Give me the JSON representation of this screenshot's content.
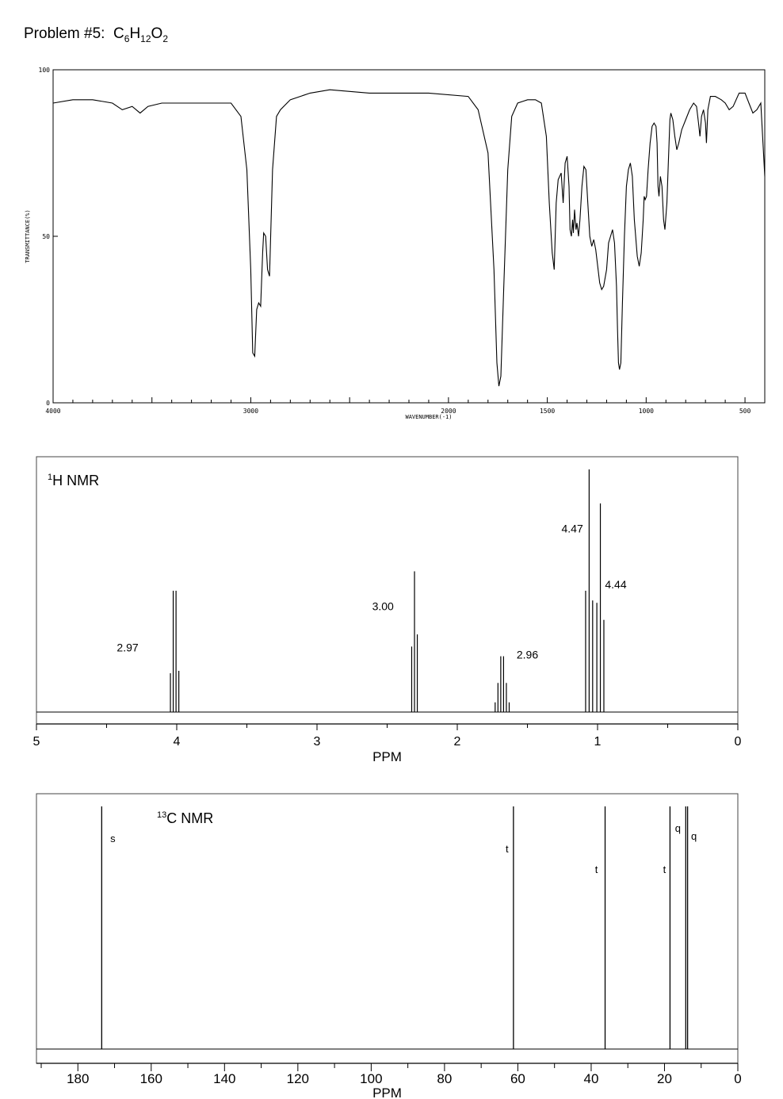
{
  "problem": {
    "label": "Problem #5:",
    "formula_parts": [
      {
        "text": "C",
        "sub": "6"
      },
      {
        "text": "H",
        "sub": "12"
      },
      {
        "text": "O",
        "sub": "2"
      }
    ]
  },
  "chart_data": [
    {
      "type": "line",
      "name": "ir",
      "xlabel": "WAVENUMBER(-1)",
      "ylabel": "TRANSMITTANCE(%)",
      "xlim": [
        4000,
        400
      ],
      "ylim": [
        0,
        100
      ],
      "x_ticks": [
        "4000",
        "3000",
        "2000",
        "1500",
        "1000",
        "500"
      ],
      "y_ticks": [
        "100",
        "50",
        "0"
      ],
      "grid": false,
      "points": [
        [
          4000,
          90
        ],
        [
          3900,
          91
        ],
        [
          3800,
          91
        ],
        [
          3700,
          90
        ],
        [
          3650,
          88
        ],
        [
          3600,
          89
        ],
        [
          3560,
          87
        ],
        [
          3520,
          89
        ],
        [
          3450,
          90
        ],
        [
          3300,
          90
        ],
        [
          3100,
          90
        ],
        [
          3050,
          86
        ],
        [
          3020,
          70
        ],
        [
          3000,
          40
        ],
        [
          2990,
          15
        ],
        [
          2980,
          14
        ],
        [
          2970,
          28
        ],
        [
          2960,
          30
        ],
        [
          2950,
          29
        ],
        [
          2940,
          45
        ],
        [
          2935,
          51
        ],
        [
          2925,
          50
        ],
        [
          2915,
          40
        ],
        [
          2905,
          38
        ],
        [
          2890,
          70
        ],
        [
          2870,
          86
        ],
        [
          2850,
          88
        ],
        [
          2800,
          91
        ],
        [
          2700,
          93
        ],
        [
          2600,
          94
        ],
        [
          2400,
          93
        ],
        [
          2200,
          93
        ],
        [
          2100,
          93
        ],
        [
          1900,
          92
        ],
        [
          1850,
          88
        ],
        [
          1800,
          75
        ],
        [
          1770,
          40
        ],
        [
          1755,
          12
        ],
        [
          1745,
          5
        ],
        [
          1735,
          8
        ],
        [
          1720,
          35
        ],
        [
          1700,
          70
        ],
        [
          1680,
          86
        ],
        [
          1650,
          90
        ],
        [
          1600,
          91
        ],
        [
          1560,
          91
        ],
        [
          1530,
          90
        ],
        [
          1505,
          80
        ],
        [
          1490,
          60
        ],
        [
          1475,
          45
        ],
        [
          1465,
          40
        ],
        [
          1455,
          60
        ],
        [
          1445,
          67
        ],
        [
          1430,
          69
        ],
        [
          1420,
          60
        ],
        [
          1410,
          72
        ],
        [
          1400,
          74
        ],
        [
          1390,
          65
        ],
        [
          1385,
          52
        ],
        [
          1378,
          50
        ],
        [
          1372,
          55
        ],
        [
          1368,
          51
        ],
        [
          1362,
          58
        ],
        [
          1355,
          52
        ],
        [
          1350,
          54
        ],
        [
          1342,
          50
        ],
        [
          1335,
          55
        ],
        [
          1325,
          65
        ],
        [
          1315,
          71
        ],
        [
          1305,
          70
        ],
        [
          1295,
          60
        ],
        [
          1285,
          50
        ],
        [
          1275,
          47
        ],
        [
          1265,
          49
        ],
        [
          1255,
          46
        ],
        [
          1245,
          41
        ],
        [
          1235,
          36
        ],
        [
          1225,
          34
        ],
        [
          1215,
          35
        ],
        [
          1200,
          40
        ],
        [
          1190,
          48
        ],
        [
          1180,
          50
        ],
        [
          1170,
          52
        ],
        [
          1160,
          48
        ],
        [
          1150,
          35
        ],
        [
          1145,
          22
        ],
        [
          1140,
          12
        ],
        [
          1135,
          10
        ],
        [
          1128,
          12
        ],
        [
          1120,
          30
        ],
        [
          1110,
          50
        ],
        [
          1100,
          65
        ],
        [
          1090,
          70
        ],
        [
          1080,
          72
        ],
        [
          1070,
          68
        ],
        [
          1060,
          55
        ],
        [
          1045,
          44
        ],
        [
          1035,
          41
        ],
        [
          1025,
          45
        ],
        [
          1015,
          55
        ],
        [
          1010,
          62
        ],
        [
          1005,
          61
        ],
        [
          998,
          62
        ],
        [
          990,
          70
        ],
        [
          980,
          78
        ],
        [
          970,
          83
        ],
        [
          960,
          84
        ],
        [
          950,
          83
        ],
        [
          945,
          78
        ],
        [
          940,
          65
        ],
        [
          935,
          62
        ],
        [
          928,
          68
        ],
        [
          920,
          65
        ],
        [
          912,
          55
        ],
        [
          905,
          52
        ],
        [
          895,
          60
        ],
        [
          888,
          72
        ],
        [
          880,
          85
        ],
        [
          875,
          87
        ],
        [
          865,
          85
        ],
        [
          855,
          80
        ],
        [
          845,
          76
        ],
        [
          835,
          78
        ],
        [
          820,
          82
        ],
        [
          800,
          85
        ],
        [
          780,
          88
        ],
        [
          760,
          90
        ],
        [
          745,
          89
        ],
        [
          735,
          84
        ],
        [
          728,
          80
        ],
        [
          720,
          86
        ],
        [
          710,
          88
        ],
        [
          700,
          84
        ],
        [
          695,
          78
        ],
        [
          688,
          88
        ],
        [
          675,
          92
        ],
        [
          650,
          92
        ],
        [
          620,
          91
        ],
        [
          600,
          90
        ],
        [
          580,
          88
        ],
        [
          560,
          89
        ],
        [
          530,
          93
        ],
        [
          500,
          93
        ],
        [
          480,
          90
        ],
        [
          460,
          87
        ],
        [
          440,
          88
        ],
        [
          420,
          90
        ],
        [
          400,
          68
        ]
      ]
    },
    {
      "type": "line",
      "name": "h_nmr",
      "title": "H NMR",
      "title_prefix_sup": "1",
      "xlabel": "PPM",
      "xlim": [
        5,
        0
      ],
      "x_ticks": [
        "5",
        "4",
        "3",
        "2",
        "1",
        "0"
      ],
      "peaks": [
        {
          "ppm": 4.045,
          "height": 0.16
        },
        {
          "ppm": 4.025,
          "height": 0.5
        },
        {
          "ppm": 4.005,
          "height": 0.5
        },
        {
          "ppm": 3.985,
          "height": 0.17
        },
        {
          "ppm": 2.325,
          "height": 0.27
        },
        {
          "ppm": 2.305,
          "height": 0.58
        },
        {
          "ppm": 2.285,
          "height": 0.32
        },
        {
          "ppm": 1.73,
          "height": 0.04
        },
        {
          "ppm": 1.71,
          "height": 0.12
        },
        {
          "ppm": 1.69,
          "height": 0.23
        },
        {
          "ppm": 1.67,
          "height": 0.23
        },
        {
          "ppm": 1.65,
          "height": 0.12
        },
        {
          "ppm": 1.63,
          "height": 0.04
        },
        {
          "ppm": 1.085,
          "height": 0.5
        },
        {
          "ppm": 1.06,
          "height": 1.0
        },
        {
          "ppm": 1.035,
          "height": 0.46
        },
        {
          "ppm": 1.005,
          "height": 0.45
        },
        {
          "ppm": 0.98,
          "height": 0.86
        },
        {
          "ppm": 0.955,
          "height": 0.38
        }
      ],
      "integrations": [
        {
          "label": "2.97",
          "ppm": 4.35,
          "level": 0.25
        },
        {
          "label": "3.00",
          "ppm": 2.53,
          "level": 0.42
        },
        {
          "label": "2.96",
          "ppm": 1.5,
          "level": 0.22
        },
        {
          "label": "4.47",
          "ppm": 1.18,
          "level": 0.74
        },
        {
          "label": "4.44",
          "ppm": 0.87,
          "level": 0.51
        }
      ]
    },
    {
      "type": "bar",
      "name": "c_nmr",
      "title": "C NMR",
      "title_prefix_sup": "13",
      "xlabel": "PPM",
      "xlim": [
        190,
        0
      ],
      "x_ticks": [
        "180",
        "160",
        "140",
        "120",
        "100",
        "80",
        "60",
        "40",
        "20",
        "0"
      ],
      "peaks": [
        {
          "ppm": 173.5,
          "mult": "s"
        },
        {
          "ppm": 61.2,
          "mult": "t"
        },
        {
          "ppm": 36.2,
          "mult": "t"
        },
        {
          "ppm": 18.5,
          "mult": "t"
        },
        {
          "ppm": 14.2,
          "mult": "q"
        },
        {
          "ppm": 13.7,
          "mult": "q"
        }
      ]
    }
  ]
}
